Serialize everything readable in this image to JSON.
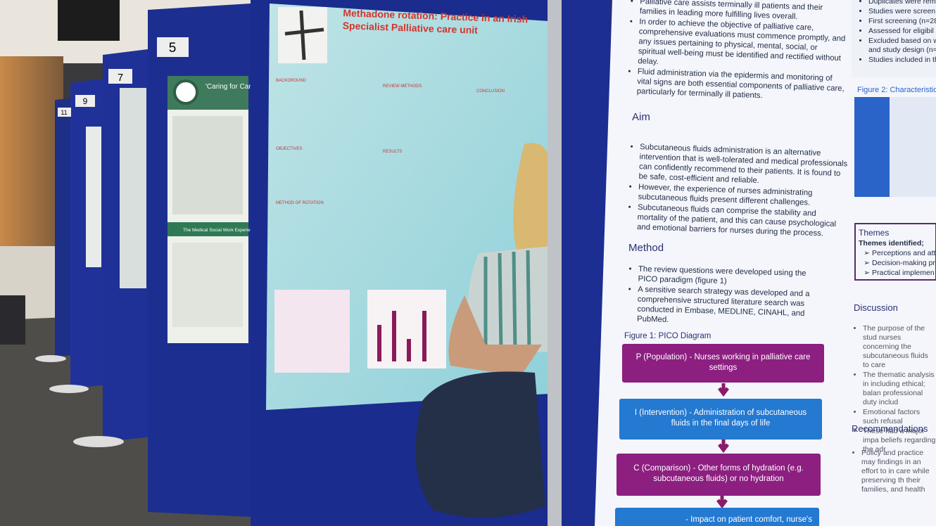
{
  "boards": [
    "11",
    "9",
    "7",
    "5"
  ],
  "left_poster": {
    "title": "'Caring for Car",
    "band": "The Medical Social Work Experience"
  },
  "center_poster": {
    "title": "Methadone rotation: Practice in an Irish Specialist Palliative care unit",
    "headings": [
      "BACKGROUND",
      "REVIEW METHODS",
      "CONCLUSION",
      "OBJECTIVES",
      "RESULTS",
      "METHOD OF ROTATION"
    ]
  },
  "right_poster": {
    "intro_bullets": [
      "Palliative care assists terminally ill patients and their families in leading more fulfilling lives overall.",
      "In order to achieve the objective of palliative care, comprehensive evaluations must commence promptly, and any issues pertaining to physical, mental, social, or spiritual well-being must be identified and rectified without delay.",
      "Fluid administration via the epidermis and monitoring of vital signs are both essential components of palliative care, particularly for terminally ill patients."
    ],
    "aim_heading": "Aim",
    "aim_bullets": [
      "Subcutaneous fluids administration is an alternative intervention that is well-tolerated and medical professionals can confidently recommend to their patients. It is found to be safe, cost-efficient and reliable.",
      "However, the experience of nurses administrating subcutaneous fluids present different challenges.",
      "Subcutaneous fluids can comprise the stability and mortality of the patient, and this can cause psychological and emotional barriers for nurses during the process."
    ],
    "method_heading": "Method",
    "method_bullets": [
      "The review questions were developed  using the PICO paradigm (figure 1)",
      "A sensitive search strategy was developed and a comprehensive structured literature search was conducted in Embase, MEDLINE, CINAHL, and PubMed."
    ],
    "figure1_caption": "Figure 1: PICO Diagram",
    "pico": [
      "P (Population) - Nurses working in palliative care settings",
      "I (Intervention) - Administration of subcutaneous fluids in the final days of life",
      "C (Comparison) - Other forms of hydration (e.g. subcutaneous fluids) or no hydration",
      "- Impact on patient comfort, nurse's"
    ]
  },
  "far_right": {
    "flow_bullets": [
      "Duplicates were rem",
      "Studies were screen",
      "First screening (n=28",
      "Assessed for eligibil",
      "Excluded based on w and study design (n=",
      "Studies included in th"
    ],
    "figure2_caption": "Figure 2: Characteristics",
    "themes_heading": "Themes",
    "themes_sub": "Themes identified;",
    "themes": [
      "Perceptions and atti",
      "Decision-making pr",
      "Practical implemen"
    ],
    "discussion_heading": "Discussion",
    "discussion_bullets": [
      "The purpose of the stud nurses concerning the subcutaneous fluids to care",
      "The thematic analysis in including ethical; balan professional duty includ",
      "Emotional factors such refusal",
      "These had a major impa beliefs regarding the adr"
    ],
    "recommendations_heading": "Recommendations",
    "recommendations_bullets": [
      "Policy and practice may findings in an effort to in care while preserving th their families, and health"
    ]
  }
}
